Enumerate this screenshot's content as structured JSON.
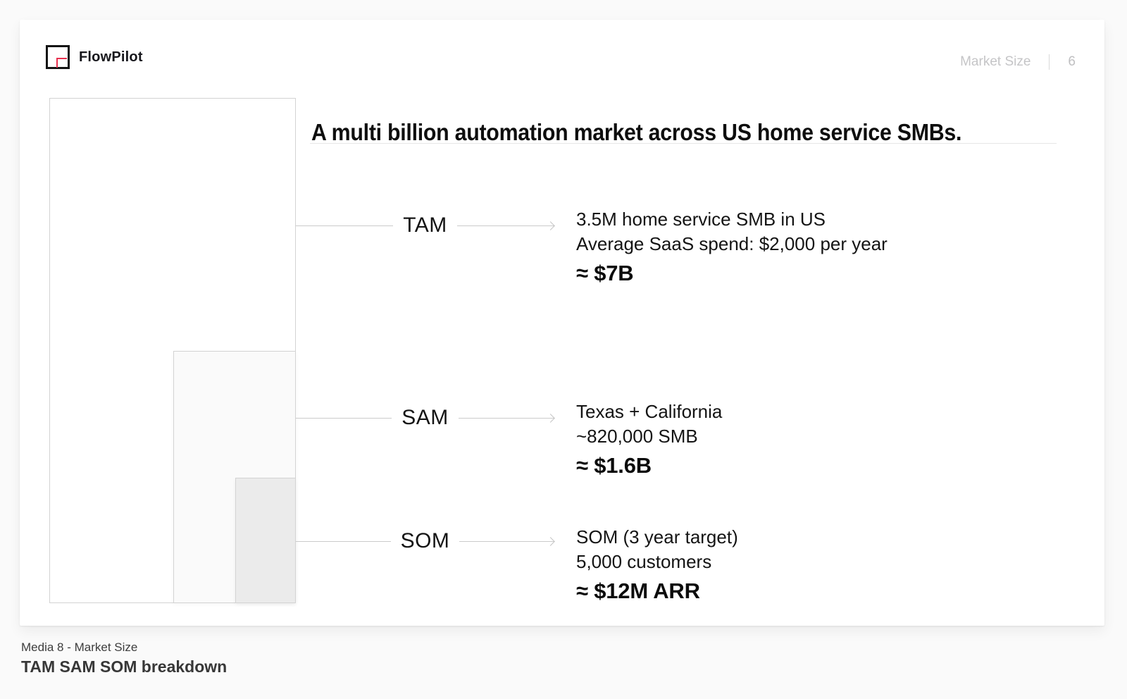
{
  "brand": {
    "name": "FlowPilot"
  },
  "header": {
    "section_label": "Market Size",
    "page_number": "6"
  },
  "slide": {
    "title": "A multi billion automation market across US home service SMBs.",
    "rows": [
      {
        "label": "TAM",
        "line1": "3.5M home service SMB in US",
        "line2": "Average SaaS spend: $2,000 per year",
        "value": "≈ $7B"
      },
      {
        "label": "SAM",
        "line1": "Texas + California",
        "line2": "~820,000 SMB",
        "value": "≈ $1.6B"
      },
      {
        "label": "SOM",
        "line1": "SOM (3 year target)",
        "line2": "5,000 customers",
        "value": "≈ $12M ARR"
      }
    ]
  },
  "footer": {
    "kicker": "Media 8 - Market Size",
    "title": "TAM SAM SOM breakdown"
  },
  "colors": {
    "accent": "#e8304e",
    "box_border": "#d3d3d3",
    "connector_line": "#cbcbcb",
    "sam_fill": "#fafafa",
    "som_fill": "#ebebeb",
    "muted_header_text": "#c5c5c7"
  }
}
